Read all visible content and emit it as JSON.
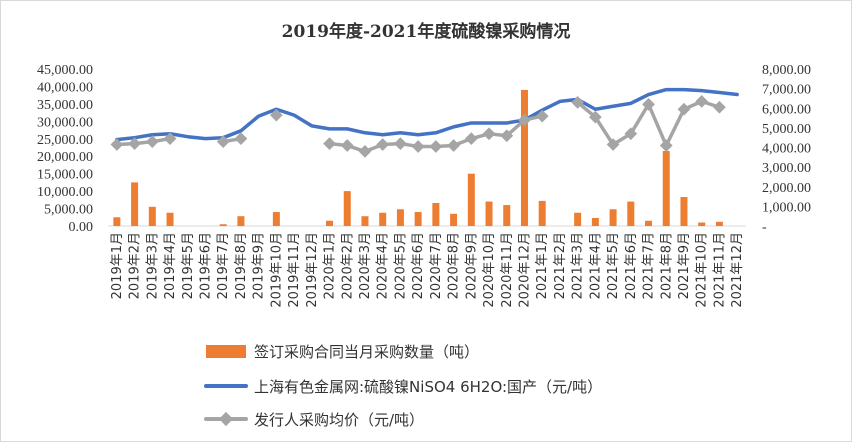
{
  "chart_data": {
    "type": "bar+line",
    "title": "2019年度-2021年度硫酸镍采购情况",
    "categories": [
      "2019年1月",
      "2019年2月",
      "2019年3月",
      "2019年4月",
      "2019年5月",
      "2019年6月",
      "2019年7月",
      "2019年8月",
      "2019年9月",
      "2019年10月",
      "2019年11月",
      "2019年12月",
      "2020年1月",
      "2020年2月",
      "2020年3月",
      "2020年4月",
      "2020年5月",
      "2020年6月",
      "2020年7月",
      "2020年8月",
      "2020年9月",
      "2020年10月",
      "2020年11月",
      "2020年12月",
      "2021年1月",
      "2021年2月",
      "2021年3月",
      "2021年4月",
      "2021年5月",
      "2021年6月",
      "2021年7月",
      "2021年8月",
      "2021年9月",
      "2021年10月",
      "2021年11月",
      "2021年12月"
    ],
    "y_left": {
      "min": 0,
      "max": 45000,
      "ticks": [
        0,
        5000,
        10000,
        15000,
        20000,
        25000,
        30000,
        35000,
        40000,
        45000
      ],
      "tick_labels": [
        "0.00",
        "5,000.00",
        "10,000.00",
        "15,000.00",
        "20,000.00",
        "25,000.00",
        "30,000.00",
        "35,000.00",
        "40,000.00",
        "45,000.00"
      ]
    },
    "y_right": {
      "min": 0,
      "max": 8000,
      "ticks": [
        0,
        1000,
        2000,
        3000,
        4000,
        5000,
        6000,
        7000,
        8000
      ],
      "tick_labels": [
        "-",
        "1,000.00",
        "2,000.00",
        "3,000.00",
        "4,000.00",
        "5,000.00",
        "6,000.00",
        "7,000.00",
        "8,000.00"
      ]
    },
    "series": [
      {
        "name": "签订采购合同当月采购数量（吨）",
        "type": "bar",
        "axis": "left",
        "color": "#ED7D31",
        "values": [
          2500,
          12500,
          5500,
          3800,
          0,
          0,
          500,
          2800,
          0,
          4000,
          0,
          0,
          1500,
          10000,
          2800,
          3800,
          4800,
          4000,
          6600,
          3500,
          15000,
          7000,
          6000,
          39000,
          7200,
          0,
          3800,
          2300,
          4800,
          7000,
          1500,
          21500,
          8300,
          1000,
          1200,
          0
        ]
      },
      {
        "name": "上海有色金属网:硫酸镍NiSO4 6H2O:国产（元/吨）",
        "type": "line",
        "axis": "right",
        "color": "#4472C4",
        "values": [
          4400,
          4500,
          4650,
          4700,
          4550,
          4450,
          4500,
          4850,
          5600,
          5950,
          5650,
          5100,
          4950,
          4950,
          4750,
          4650,
          4750,
          4650,
          4750,
          5050,
          5250,
          5250,
          5250,
          5400,
          5900,
          6350,
          6450,
          5950,
          6100,
          6250,
          6700,
          6950,
          6950,
          6900,
          6800,
          6700
        ]
      },
      {
        "name": "发行人采购均价（元/吨）",
        "type": "line",
        "axis": "right",
        "color": "#A5A5A5",
        "values": [
          4150,
          4200,
          4300,
          4450,
          null,
          null,
          4300,
          4450,
          null,
          5650,
          null,
          null,
          4200,
          4100,
          3800,
          4150,
          4200,
          4050,
          4050,
          4100,
          4450,
          4700,
          4600,
          5400,
          5600,
          null,
          6300,
          5550,
          4150,
          4700,
          6200,
          4100,
          5950,
          6350,
          6050,
          null
        ]
      }
    ],
    "legend": {
      "position": "bottom",
      "entries": [
        "签订采购合同当月采购数量（吨）",
        "上海有色金属网:硫酸镍NiSO4 6H2O:国产（元/吨）",
        "发行人采购均价（元/吨）"
      ]
    },
    "grid": false
  }
}
